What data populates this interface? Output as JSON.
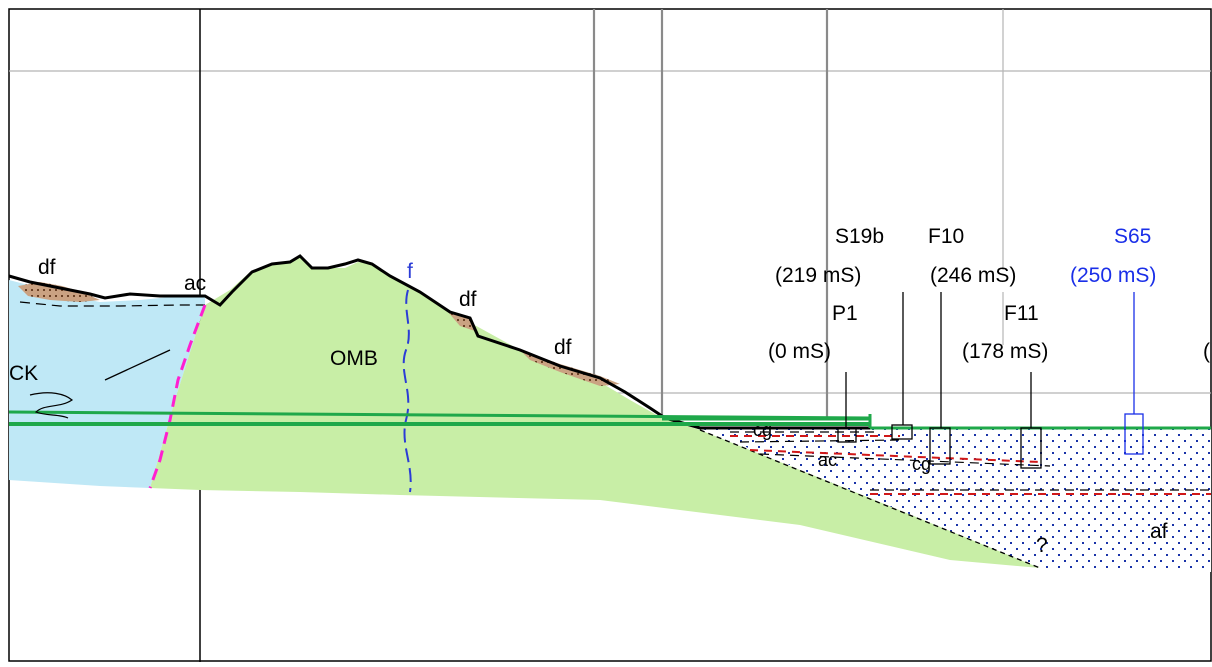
{
  "colors": {
    "water": "#bfe8f6",
    "bedrock": "#c8eea6",
    "deposit": "#caa282",
    "alluvium_dots": "#1a33a8",
    "fault_contact": "#ff1fd0",
    "fault_f": "#2b3cd6",
    "water_table": "#1fa84a",
    "highlight": "#1a2fe8",
    "gridline": "#b5b5b5"
  },
  "units": {
    "df_left": "df",
    "ac_top": "ac",
    "f": "f",
    "df_mid": "df",
    "df_right": "df",
    "omb": "OMB",
    "ck": "CK",
    "cg_upper": "cg",
    "ac_lower": "ac",
    "cg_lower": "cg",
    "af": "af",
    "question": "?"
  },
  "boreholes": {
    "s19b": {
      "name": "S19b",
      "value": "(219 mS)"
    },
    "f10": {
      "name": "F10",
      "value": "(246 mS)"
    },
    "s65": {
      "name": "S65",
      "value": "(250 mS)"
    },
    "p1": {
      "name": "P1",
      "value": "(0 mS)"
    },
    "f11": {
      "name": "F11",
      "value": "(178 mS)"
    },
    "edge": {
      "value": "("
    }
  }
}
